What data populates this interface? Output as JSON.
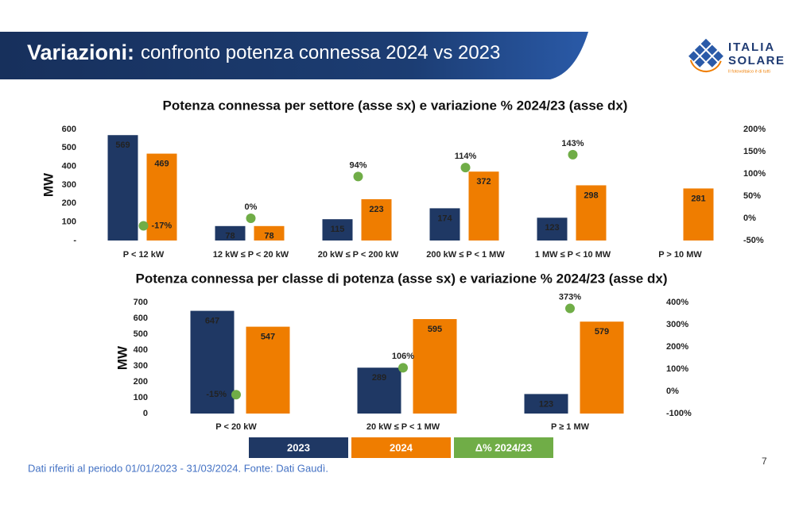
{
  "header": {
    "title_bold": "Variazioni:",
    "title_rest": "confronto potenza connessa 2024 vs 2023"
  },
  "logo": {
    "line1": "ITALIA",
    "line2": "SOLARE",
    "tagline": "Il fotovoltaico è di tutti"
  },
  "chart_data": [
    {
      "type": "bar",
      "title": "Potenza connessa per settore (asse sx) e variazione % 2024/23 (asse dx)",
      "y_label": "MW",
      "categories": [
        "P < 12 kW",
        "12 kW ≤ P < 20 kW",
        "20 kW ≤ P < 200 kW",
        "200 kW ≤ P < 1 MW",
        "1 MW ≤ P  < 10 MW",
        "P > 10 MW"
      ],
      "series": [
        {
          "color": "#1f3864",
          "values": [
            569,
            78,
            115,
            174,
            123,
            null
          ]
        },
        {
          "color": "#ef7d00",
          "values": [
            469,
            78,
            223,
            372,
            298,
            281
          ]
        },
        {
          "color": "#70ad47",
          "axis": "y2",
          "values": [
            -17,
            0,
            94,
            114,
            143,
            null
          ],
          "value_labels": [
            "-17%",
            "0%",
            "94%",
            "114%",
            "143%",
            null
          ]
        }
      ],
      "ylim": [
        0,
        600
      ],
      "yticks": [
        {
          "value": 0,
          "label": "-"
        },
        100,
        200,
        300,
        400,
        500,
        600
      ],
      "y2lim": [
        -50,
        200
      ],
      "y2ticks": [
        {
          "value": -50,
          "label": "-50%"
        },
        {
          "value": 0,
          "label": "0%"
        },
        {
          "value": 50,
          "label": "50%"
        },
        {
          "value": 100,
          "label": "100%"
        },
        {
          "value": 150,
          "label": "150%"
        },
        {
          "value": 200,
          "label": "200%"
        }
      ]
    },
    {
      "type": "bar",
      "title": "Potenza connessa per classe di potenza (asse sx) e variazione % 2024/23 (asse dx)",
      "y_label": "MW",
      "categories": [
        "P < 20 kW",
        "20 kW ≤ P < 1 MW",
        "P ≥ 1 MW"
      ],
      "series": [
        {
          "name": "2023",
          "color": "#1f3864",
          "values": [
            647,
            289,
            123
          ]
        },
        {
          "name": "2024",
          "color": "#ef7d00",
          "values": [
            547,
            595,
            579
          ]
        },
        {
          "name": "Δ% 2024/23",
          "color": "#70ad47",
          "axis": "y2",
          "values": [
            -15,
            106,
            373
          ],
          "value_labels": [
            "-15%",
            "106%",
            "373%"
          ]
        }
      ],
      "ylim": [
        0,
        700
      ],
      "yticks": [
        0,
        100,
        200,
        300,
        400,
        500,
        600,
        700
      ],
      "y2lim": [
        -100,
        400
      ],
      "y2ticks": [
        {
          "value": -100,
          "label": "-100%"
        },
        {
          "value": 0,
          "label": "0%"
        },
        {
          "value": 100,
          "label": "100%"
        },
        {
          "value": 200,
          "label": "200%"
        },
        {
          "value": 300,
          "label": "300%"
        },
        {
          "value": 400,
          "label": "400%"
        }
      ]
    }
  ],
  "footnote": "Dati riferiti al periodo 01/01/2023 - 31/03/2024. Fonte: Dati Gaudì.",
  "page_number": "7"
}
